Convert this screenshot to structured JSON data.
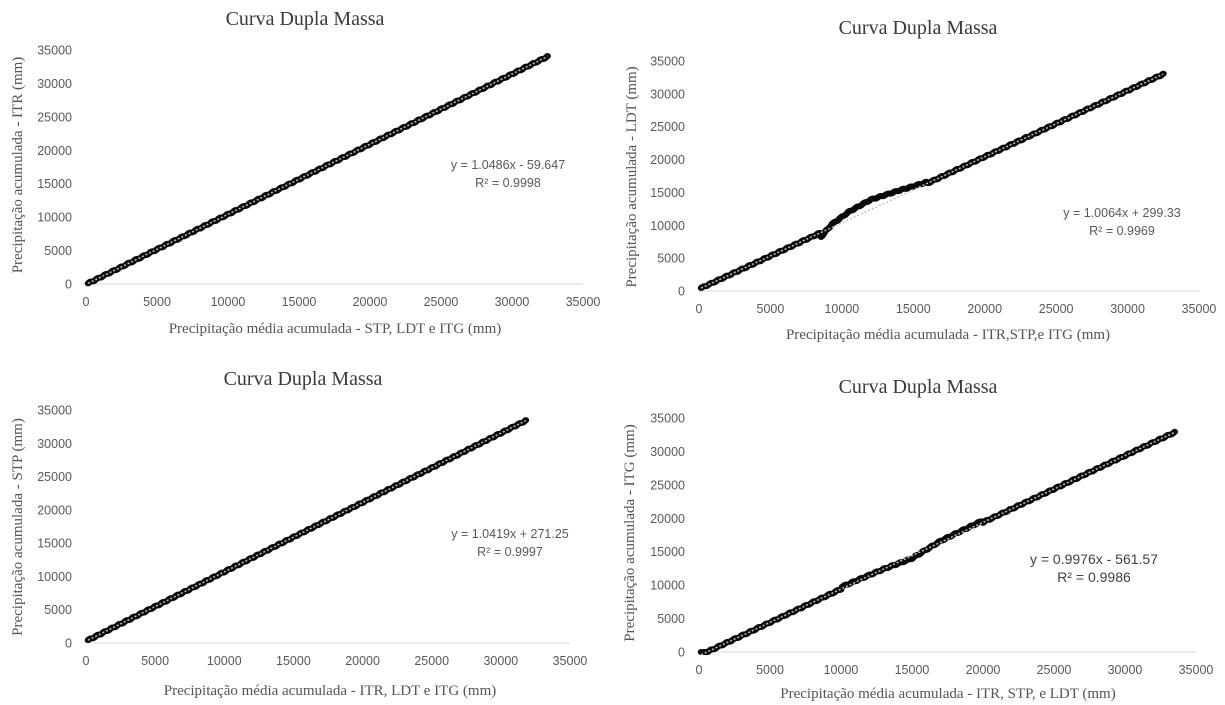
{
  "chart_data": [
    {
      "type": "scatter",
      "title": "Curva Dupla Massa",
      "xlabel": "Precipitação  média acumulada - STP, LDT e ITG (mm)",
      "ylabel": "Precipitação acumulada - ITR (mm)",
      "xlim": [
        0,
        35000
      ],
      "ylim": [
        0,
        35000
      ],
      "x_ticks": [
        "0",
        "5000",
        "10000",
        "15000",
        "20000",
        "25000",
        "30000",
        "35000"
      ],
      "y_ticks": [
        "0",
        "5000",
        "10000",
        "15000",
        "20000",
        "25000",
        "30000",
        "35000"
      ],
      "trendline": {
        "slope": 1.0486,
        "intercept": -59.647
      },
      "equation": "y = 1.0486x - 59.647",
      "r2_label": "R² = 0.9998",
      "x_max": 32500,
      "deviation": []
    },
    {
      "type": "scatter",
      "title": "Curva Dupla Massa",
      "xlabel": "Precipitação  média acumulada - ITR,STP,e ITG (mm)",
      "ylabel": "Precipitação acumulada - LDT (mm)",
      "xlim": [
        0,
        35000
      ],
      "ylim": [
        0,
        35000
      ],
      "x_ticks": [
        "0",
        "5000",
        "10000",
        "15000",
        "20000",
        "25000",
        "30000",
        "35000"
      ],
      "y_ticks": [
        "0",
        "5000",
        "10000",
        "15000",
        "20000",
        "25000",
        "30000",
        "35000"
      ],
      "trendline": {
        "slope": 1.0064,
        "intercept": 299.33
      },
      "equation": "y = 1.0064x + 299.33",
      "r2_label": "R² = 0.9969",
      "x_max": 32500,
      "deviation": [
        [
          8500,
          -700
        ],
        [
          9300,
          500
        ],
        [
          10500,
          1200
        ],
        [
          12000,
          1500
        ],
        [
          14000,
          900
        ],
        [
          16000,
          200
        ]
      ]
    },
    {
      "type": "scatter",
      "title": "Curva Dupla Massa",
      "xlabel": "Precipitação  média acumulada - ITR, LDT e ITG (mm)",
      "ylabel": "Precipitação acumulada - STP (mm)",
      "xlim": [
        0,
        35000
      ],
      "ylim": [
        0,
        35000
      ],
      "x_ticks": [
        "0",
        "5000",
        "10000",
        "15000",
        "20000",
        "25000",
        "30000",
        "35000"
      ],
      "y_ticks": [
        "0",
        "5000",
        "10000",
        "15000",
        "20000",
        "25000",
        "30000",
        "35000"
      ],
      "trendline": {
        "slope": 1.0419,
        "intercept": 271.25
      },
      "equation": "y = 1.0419x + 271.25",
      "r2_label": "R² = 0.9997",
      "x_max": 31800,
      "deviation": []
    },
    {
      "type": "scatter",
      "title": "Curva Dupla Massa",
      "xlabel": "Precipitação  média acumulada - ITR, STP,  e LDT (mm)",
      "ylabel": "Precipitação acumulada - ITG (mm)",
      "xlim": [
        0,
        35000
      ],
      "ylim": [
        0,
        35000
      ],
      "x_ticks": [
        "0",
        "5000",
        "10000",
        "15000",
        "20000",
        "25000",
        "30000",
        "35000"
      ],
      "y_ticks": [
        "0",
        "5000",
        "10000",
        "15000",
        "20000",
        "25000",
        "30000",
        "35000"
      ],
      "trendline": {
        "slope": 0.9976,
        "intercept": -561.57
      },
      "equation": "y = 0.9976x - 561.57",
      "r2_label": "R² = 0.9986",
      "x_max": 33500,
      "deviation": [
        [
          10000,
          300
        ],
        [
          13000,
          0
        ],
        [
          15000,
          -400
        ],
        [
          17000,
          200
        ],
        [
          20000,
          300
        ]
      ]
    }
  ]
}
